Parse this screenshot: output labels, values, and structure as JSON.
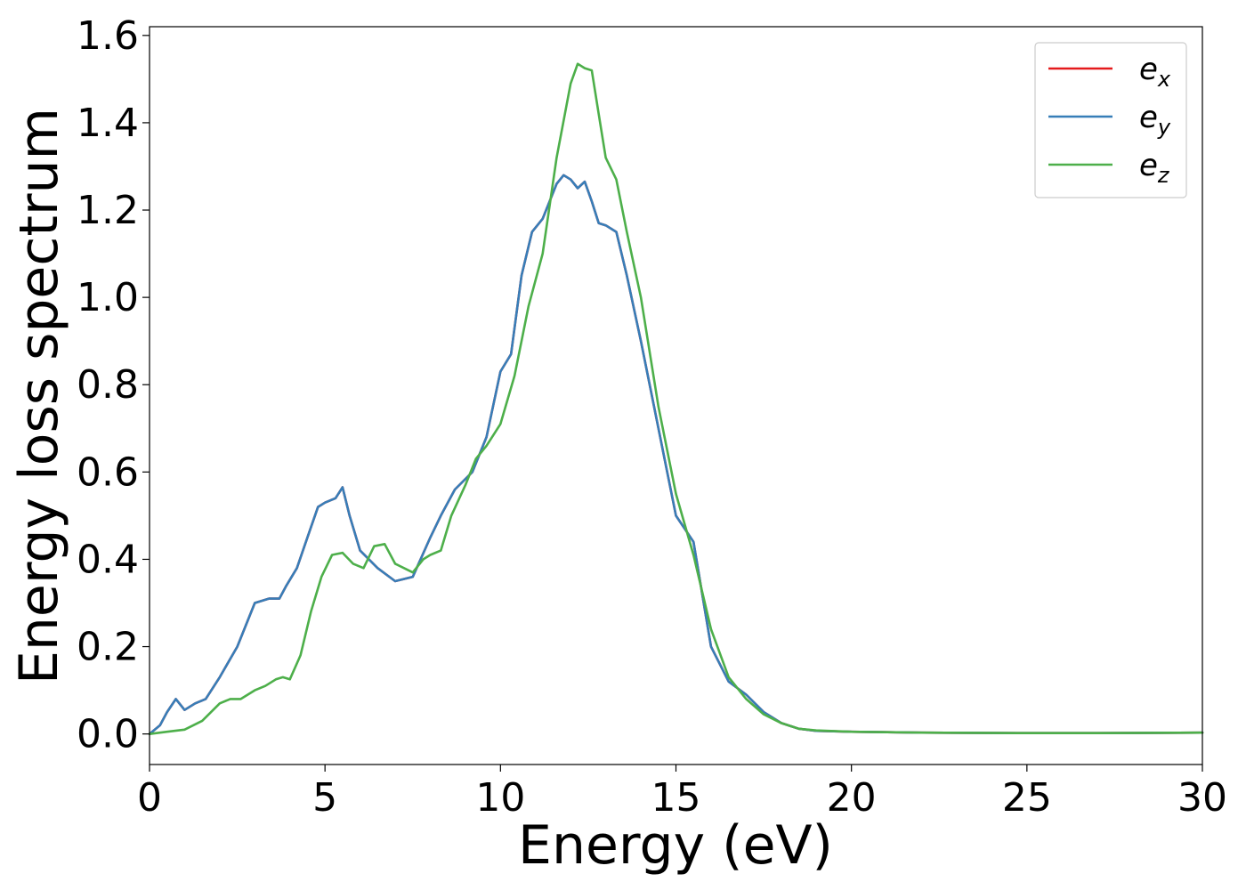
{
  "chart_data": {
    "type": "line",
    "title": "",
    "xlabel": "Energy (eV)",
    "ylabel": "Energy loss spectrum",
    "xlim": [
      0,
      30
    ],
    "ylim": [
      -0.07,
      1.62
    ],
    "xticks": [
      0,
      5,
      10,
      15,
      20,
      25,
      30
    ],
    "xtick_labels": [
      "0",
      "5",
      "10",
      "15",
      "20",
      "25",
      "30"
    ],
    "yticks": [
      0.0,
      0.2,
      0.4,
      0.6,
      0.8,
      1.0,
      1.2,
      1.4,
      1.6
    ],
    "ytick_labels": [
      "0.0",
      "0.2",
      "0.4",
      "0.6",
      "0.8",
      "1.0",
      "1.2",
      "1.4",
      "1.6"
    ],
    "grid": false,
    "legend": {
      "placement": "top-right"
    },
    "series": [
      {
        "name": "e_x",
        "label_base": "e",
        "label_sub": "x",
        "color": "#e41a1c",
        "x": [
          0,
          0.3,
          0.5,
          0.75,
          1.0,
          1.3,
          1.6,
          2.0,
          2.5,
          3.0,
          3.4,
          3.7,
          3.9,
          4.2,
          4.5,
          4.8,
          5.0,
          5.3,
          5.5,
          5.7,
          6.0,
          6.5,
          7.0,
          7.5,
          8.0,
          8.3,
          8.7,
          9.2,
          9.6,
          10.0,
          10.3,
          10.6,
          10.9,
          11.2,
          11.6,
          11.8,
          12.0,
          12.2,
          12.4,
          12.6,
          12.8,
          13.0,
          13.3,
          13.6,
          14.0,
          14.5,
          15.0,
          15.5,
          16.0,
          16.5,
          17.0,
          17.5,
          18.0,
          18.5,
          19.0,
          20.0,
          22.0,
          25.0,
          27.0,
          30.0
        ],
        "y": [
          0.0,
          0.02,
          0.05,
          0.08,
          0.055,
          0.07,
          0.08,
          0.13,
          0.2,
          0.3,
          0.31,
          0.31,
          0.34,
          0.38,
          0.45,
          0.52,
          0.53,
          0.54,
          0.565,
          0.5,
          0.42,
          0.38,
          0.35,
          0.36,
          0.45,
          0.5,
          0.56,
          0.6,
          0.68,
          0.83,
          0.87,
          1.05,
          1.15,
          1.18,
          1.26,
          1.28,
          1.27,
          1.25,
          1.265,
          1.22,
          1.17,
          1.165,
          1.15,
          1.05,
          0.9,
          0.7,
          0.5,
          0.44,
          0.2,
          0.12,
          0.09,
          0.05,
          0.025,
          0.012,
          0.007,
          0.005,
          0.003,
          0.002,
          0.002,
          0.003
        ]
      },
      {
        "name": "e_y",
        "label_base": "e",
        "label_sub": "y",
        "color": "#377eb8",
        "x": [
          0,
          0.3,
          0.5,
          0.75,
          1.0,
          1.3,
          1.6,
          2.0,
          2.5,
          3.0,
          3.4,
          3.7,
          3.9,
          4.2,
          4.5,
          4.8,
          5.0,
          5.3,
          5.5,
          5.7,
          6.0,
          6.5,
          7.0,
          7.5,
          8.0,
          8.3,
          8.7,
          9.2,
          9.6,
          10.0,
          10.3,
          10.6,
          10.9,
          11.2,
          11.6,
          11.8,
          12.0,
          12.2,
          12.4,
          12.6,
          12.8,
          13.0,
          13.3,
          13.6,
          14.0,
          14.5,
          15.0,
          15.5,
          16.0,
          16.5,
          17.0,
          17.5,
          18.0,
          18.5,
          19.0,
          20.0,
          22.0,
          25.0,
          27.0,
          30.0
        ],
        "y": [
          0.0,
          0.02,
          0.05,
          0.08,
          0.055,
          0.07,
          0.08,
          0.13,
          0.2,
          0.3,
          0.31,
          0.31,
          0.34,
          0.38,
          0.45,
          0.52,
          0.53,
          0.54,
          0.565,
          0.5,
          0.42,
          0.38,
          0.35,
          0.36,
          0.45,
          0.5,
          0.56,
          0.6,
          0.68,
          0.83,
          0.87,
          1.05,
          1.15,
          1.18,
          1.26,
          1.28,
          1.27,
          1.25,
          1.265,
          1.22,
          1.17,
          1.165,
          1.15,
          1.05,
          0.9,
          0.7,
          0.5,
          0.44,
          0.2,
          0.12,
          0.09,
          0.05,
          0.025,
          0.012,
          0.007,
          0.005,
          0.003,
          0.002,
          0.002,
          0.003
        ]
      },
      {
        "name": "e_z",
        "label_base": "e",
        "label_sub": "z",
        "color": "#4daf4a",
        "x": [
          0,
          0.5,
          1.0,
          1.5,
          2.0,
          2.3,
          2.6,
          3.0,
          3.3,
          3.6,
          3.8,
          4.0,
          4.3,
          4.6,
          4.9,
          5.2,
          5.5,
          5.8,
          6.1,
          6.4,
          6.7,
          7.0,
          7.5,
          7.8,
          8.0,
          8.3,
          8.6,
          9.0,
          9.3,
          9.6,
          10.0,
          10.4,
          10.8,
          11.2,
          11.6,
          12.0,
          12.2,
          12.4,
          12.6,
          12.8,
          13.0,
          13.3,
          13.6,
          14.0,
          14.5,
          15.0,
          15.5,
          16.0,
          16.5,
          17.0,
          17.5,
          18.0,
          18.5,
          19.0,
          20.0,
          22.0,
          25.0,
          27.0,
          30.0
        ],
        "y": [
          0.0,
          0.005,
          0.01,
          0.03,
          0.07,
          0.08,
          0.08,
          0.1,
          0.11,
          0.125,
          0.13,
          0.125,
          0.18,
          0.28,
          0.36,
          0.41,
          0.415,
          0.39,
          0.38,
          0.43,
          0.435,
          0.39,
          0.37,
          0.4,
          0.41,
          0.42,
          0.5,
          0.57,
          0.63,
          0.66,
          0.71,
          0.82,
          0.98,
          1.1,
          1.32,
          1.49,
          1.535,
          1.525,
          1.52,
          1.42,
          1.32,
          1.27,
          1.15,
          1.0,
          0.75,
          0.55,
          0.41,
          0.24,
          0.13,
          0.08,
          0.045,
          0.025,
          0.012,
          0.008,
          0.005,
          0.003,
          0.002,
          0.002,
          0.003
        ]
      }
    ]
  }
}
